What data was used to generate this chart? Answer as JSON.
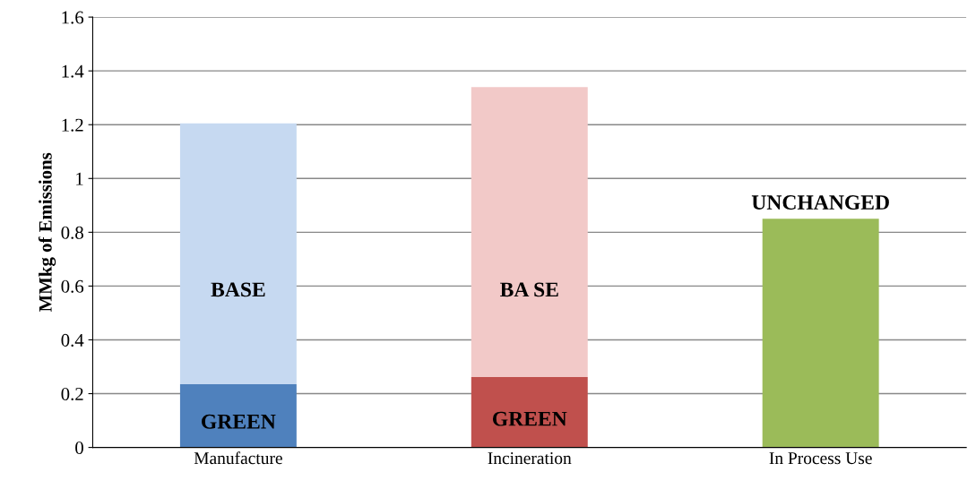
{
  "chart_data": {
    "type": "bar",
    "stacked": true,
    "ylabel": "MMkg of Emissions",
    "categories": [
      "Manufacture",
      "Incineration",
      "In Process Use"
    ],
    "series": [
      {
        "colors": [
          "#4f81bd",
          "#c0504d",
          "#9bbb59"
        ],
        "values": [
          0.235,
          0.262,
          0.85
        ]
      },
      {
        "colors": [
          "#c6d9f1",
          "#f2c9c8",
          "#ffffff"
        ],
        "values": [
          0.97,
          1.078,
          null
        ]
      }
    ],
    "ylim": [
      0,
      1.6
    ],
    "yticks": [
      0,
      0.2,
      0.4,
      0.6,
      0.8,
      1,
      1.2,
      1.4,
      1.6
    ],
    "grid": "y",
    "annotations": [
      "GREEN",
      "BASE",
      "GREEN",
      "BA SE",
      "UNCHANGED"
    ]
  }
}
